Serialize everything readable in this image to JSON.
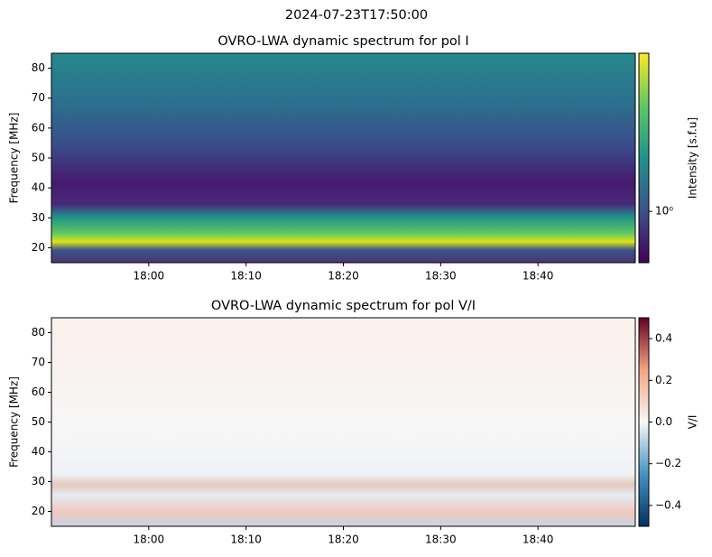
{
  "title": "2024-07-23T17:50:00",
  "chart_data": [
    {
      "type": "heatmap",
      "title": "OVRO-LWA dynamic spectrum for pol I",
      "ylabel": "Frequency [MHz]",
      "xlim": [
        "17:50",
        "18:50"
      ],
      "xticks": [
        "18:00",
        "18:10",
        "18:20",
        "18:30",
        "18:40"
      ],
      "ylim": [
        15,
        85
      ],
      "yticks": [
        20,
        30,
        40,
        50,
        60,
        70,
        80
      ],
      "colorbar": {
        "label": "Intensity [s.f.u]",
        "colormap": "viridis",
        "scale": "log",
        "lim": [
          0.7,
          3.0
        ],
        "ticks": [
          {
            "value": 1,
            "label": "10⁰"
          }
        ]
      }
    },
    {
      "type": "heatmap",
      "title": "OVRO-LWA dynamic spectrum for pol V/I",
      "ylabel": "Frequency [MHz]",
      "xlim": [
        "17:50",
        "18:50"
      ],
      "xticks": [
        "18:00",
        "18:10",
        "18:20",
        "18:30",
        "18:40"
      ],
      "ylim": [
        15,
        85
      ],
      "yticks": [
        20,
        30,
        40,
        50,
        60,
        70,
        80
      ],
      "colorbar": {
        "label": "V/I",
        "colormap": "RdBu_r",
        "scale": "linear",
        "lim": [
          -0.5,
          0.5
        ],
        "ticks": [
          {
            "value": -0.4,
            "label": "−0.4"
          },
          {
            "value": -0.2,
            "label": "−0.2"
          },
          {
            "value": 0,
            "label": "0.0"
          },
          0.2,
          0.4
        ]
      }
    }
  ]
}
